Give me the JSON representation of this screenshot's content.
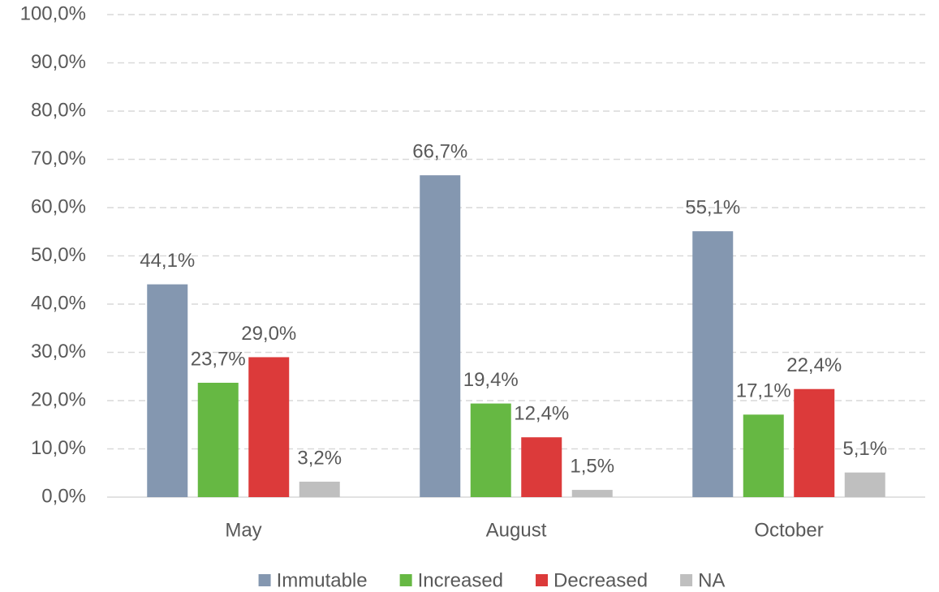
{
  "chart_data": {
    "type": "bar",
    "categories": [
      "May",
      "August",
      "October"
    ],
    "series": [
      {
        "name": "Immutable",
        "color": "#8497b0",
        "values": [
          44.1,
          66.7,
          55.1
        ],
        "value_labels": [
          "44,1%",
          "66,7%",
          "55,1%"
        ]
      },
      {
        "name": "Increased",
        "color": "#66b843",
        "values": [
          23.7,
          19.4,
          17.1
        ],
        "value_labels": [
          "23,7%",
          "19,4%",
          "17,1%"
        ]
      },
      {
        "name": "Decreased",
        "color": "#dc3a3a",
        "values": [
          29.0,
          12.4,
          22.4
        ],
        "value_labels": [
          "29,0%",
          "12,4%",
          "22,4%"
        ]
      },
      {
        "name": "NA",
        "color": "#bfbfbf",
        "values": [
          3.2,
          1.5,
          5.1
        ],
        "value_labels": [
          "3,2%",
          "1,5%",
          "5,1%"
        ]
      }
    ],
    "ylim": [
      0,
      100
    ],
    "yticks": [
      {
        "value": 0,
        "label": "0,0%"
      },
      {
        "value": 10,
        "label": "10,0%"
      },
      {
        "value": 20,
        "label": "20,0%"
      },
      {
        "value": 30,
        "label": "30,0%"
      },
      {
        "value": 40,
        "label": "40,0%"
      },
      {
        "value": 50,
        "label": "50,0%"
      },
      {
        "value": 60,
        "label": "60,0%"
      },
      {
        "value": 70,
        "label": "70,0%"
      },
      {
        "value": 80,
        "label": "80,0%"
      },
      {
        "value": 90,
        "label": "90,0%"
      },
      {
        "value": 100,
        "label": "100,0%"
      }
    ],
    "grid": true,
    "legend": "bottom"
  }
}
